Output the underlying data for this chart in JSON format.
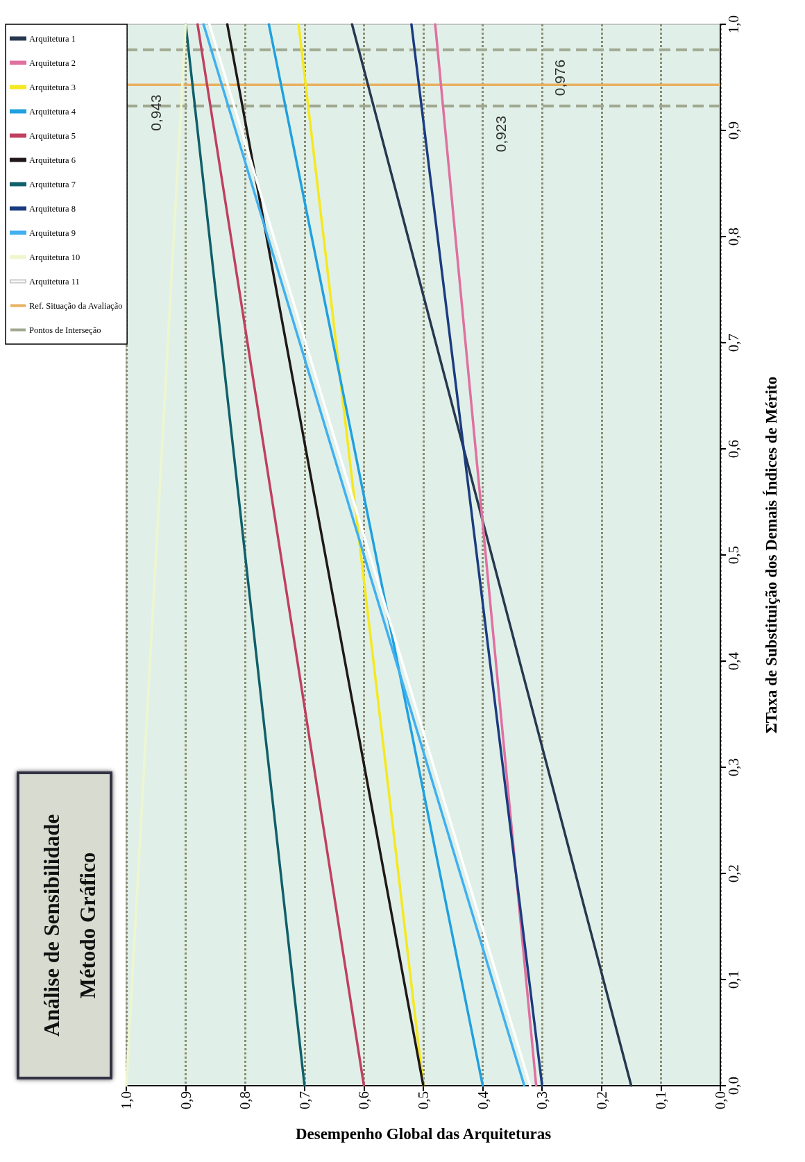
{
  "chart_data": {
    "type": "line",
    "title": "Análise de Sensibilidade\nMétodo Gráfico",
    "xlabel": "Desempenho Global das Arquiteturas",
    "ylabel": "ΣTaxa de Substituição dos Demais Índices de Mérito",
    "xlim": [
      1,
      0
    ],
    "ylim": [
      0,
      1
    ],
    "xticks": [
      {
        "value": 0,
        "label": "0,0"
      },
      {
        "value": 0.1,
        "label": "0,1"
      },
      {
        "value": 0.2,
        "label": "0,2"
      },
      {
        "value": 0.3,
        "label": "0,3"
      },
      {
        "value": 0.4,
        "label": "0,4"
      },
      {
        "value": 0.5,
        "label": "0,5"
      },
      {
        "value": 0.6,
        "label": "0,6"
      },
      {
        "value": 0.7,
        "label": "0,7"
      },
      {
        "value": 0.8,
        "label": "0,8"
      },
      {
        "value": 0.9,
        "label": "0,9"
      },
      {
        "value": 1,
        "label": "1,0"
      }
    ],
    "yticks": [
      {
        "value": 0,
        "label": "0,0"
      },
      {
        "value": 0.1,
        "label": "0,1"
      },
      {
        "value": 0.2,
        "label": "0,2"
      },
      {
        "value": 0.3,
        "label": "0,3"
      },
      {
        "value": 0.4,
        "label": "0,4"
      },
      {
        "value": 0.5,
        "label": "0,5"
      },
      {
        "value": 0.6,
        "label": "0,6"
      },
      {
        "value": 0.7,
        "label": "0,7"
      },
      {
        "value": 0.8,
        "label": "0,8"
      },
      {
        "value": 0.9,
        "label": "0,9"
      },
      {
        "value": 1,
        "label": "1,0"
      }
    ],
    "grid": "x",
    "legend": "top left",
    "marker": "none",
    "line_style": "solid",
    "series": [
      {
        "name": "Arquitetura 1",
        "color": "#27384f",
        "x": [
          0.15,
          0.62
        ],
        "values": [
          0,
          1
        ]
      },
      {
        "name": "Arquitetura 2",
        "color": "#e070a0",
        "x": [
          0.31,
          0.48
        ],
        "values": [
          0,
          1
        ]
      },
      {
        "name": "Arquitetura 3",
        "color": "#f5e820",
        "x": [
          0.5,
          0.71
        ],
        "values": [
          0,
          1
        ]
      },
      {
        "name": "Arquitetura 4",
        "color": "#20a0e0",
        "x": [
          0.4,
          0.76
        ],
        "values": [
          0,
          1
        ]
      },
      {
        "name": "Arquitetura 5",
        "color": "#c04060",
        "x": [
          0.6,
          0.88
        ],
        "values": [
          0,
          1
        ]
      },
      {
        "name": "Arquitetura 6",
        "color": "#201818",
        "x": [
          0.5,
          0.83
        ],
        "values": [
          0,
          1
        ]
      },
      {
        "name": "Arquitetura 7",
        "color": "#10606a",
        "x": [
          0.7,
          0.9
        ],
        "values": [
          0,
          1
        ]
      },
      {
        "name": "Arquitetura 8",
        "color": "#1c3c80",
        "x": [
          0.3,
          0.52
        ],
        "values": [
          0,
          1
        ]
      },
      {
        "name": "Arquitetura 9",
        "color": "#40b0f0",
        "x": [
          0.33,
          0.87
        ],
        "values": [
          0,
          1
        ]
      },
      {
        "name": "Arquitetura 10",
        "color": "#eef6d0",
        "x": [
          1.0,
          0.9
        ],
        "values": [
          0,
          1
        ]
      },
      {
        "name": "Arquitetura 11",
        "color": "#ffffff",
        "x": [
          0.32,
          0.86
        ],
        "values": [
          0,
          1
        ]
      }
    ],
    "ref_lines": [
      {
        "axis": "y",
        "value": 0.943,
        "label": "Ref. Situação da Avaliação",
        "color": "#e8b060",
        "line_style": "solid"
      },
      {
        "axis": "y",
        "value": 0.923,
        "label": "Pontos de Interseção",
        "color": "#a0a890",
        "line_style": "dashed"
      },
      {
        "axis": "y",
        "value": 0.976,
        "color": "#a0a890",
        "line_style": "dashed"
      }
    ],
    "annotations": [
      {
        "text": "0,943",
        "x": 0.95,
        "y": 0.943
      },
      {
        "text": "0,923",
        "x": 0.37,
        "y": 0.923
      },
      {
        "text": "0,976",
        "x": 0.27,
        "y": 0.976
      }
    ]
  }
}
